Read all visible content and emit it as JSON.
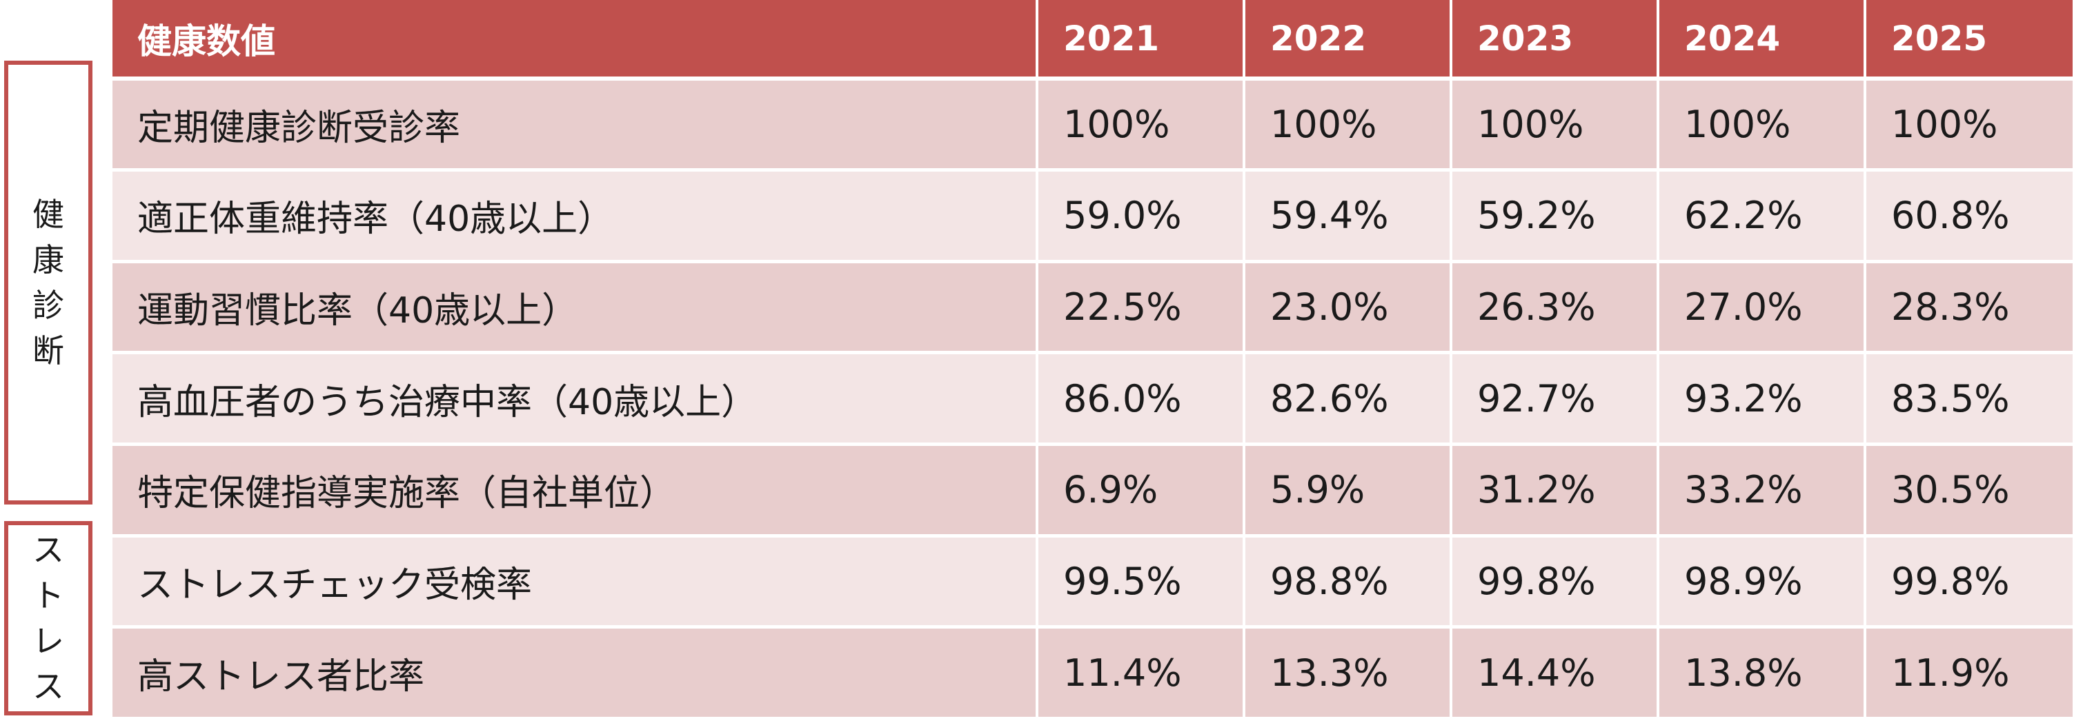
{
  "colors": {
    "header_bg": "#c0504d",
    "header_text": "#ffffff",
    "row_odd_bg": "#e8cdcd",
    "row_even_bg": "#f3e5e5",
    "side_border": "#c0504d"
  },
  "side_groups": {
    "health": [
      "健",
      "康",
      "診",
      "断"
    ],
    "stress": [
      "ス",
      "ト",
      "レ",
      "ス"
    ]
  },
  "table": {
    "header": {
      "label": "健康数値",
      "years": [
        "2021",
        "2022",
        "2023",
        "2024",
        "2025"
      ]
    },
    "rows": [
      {
        "label": "定期健康診断受診率",
        "values": [
          "100%",
          "100%",
          "100%",
          "100%",
          "100%"
        ]
      },
      {
        "label": "適正体重維持率（40歳以上）",
        "values": [
          "59.0%",
          "59.4%",
          "59.2%",
          "62.2%",
          "60.8%"
        ]
      },
      {
        "label": "運動習慣比率（40歳以上）",
        "values": [
          "22.5%",
          "23.0%",
          "26.3%",
          "27.0%",
          "28.3%"
        ]
      },
      {
        "label": "高血圧者のうち治療中率（40歳以上）",
        "values": [
          "86.0%",
          "82.6%",
          "92.7%",
          "93.2%",
          "83.5%"
        ]
      },
      {
        "label": "特定保健指導実施率（自社単位）",
        "values": [
          "6.9%",
          "5.9%",
          "31.2%",
          "33.2%",
          "30.5%"
        ]
      },
      {
        "label": "ストレスチェック受検率",
        "values": [
          "99.5%",
          "98.8%",
          "99.8%",
          "98.9%",
          "99.8%"
        ]
      },
      {
        "label": "高ストレス者比率",
        "values": [
          "11.4%",
          "13.3%",
          "14.4%",
          "13.8%",
          "11.9%"
        ]
      }
    ]
  }
}
